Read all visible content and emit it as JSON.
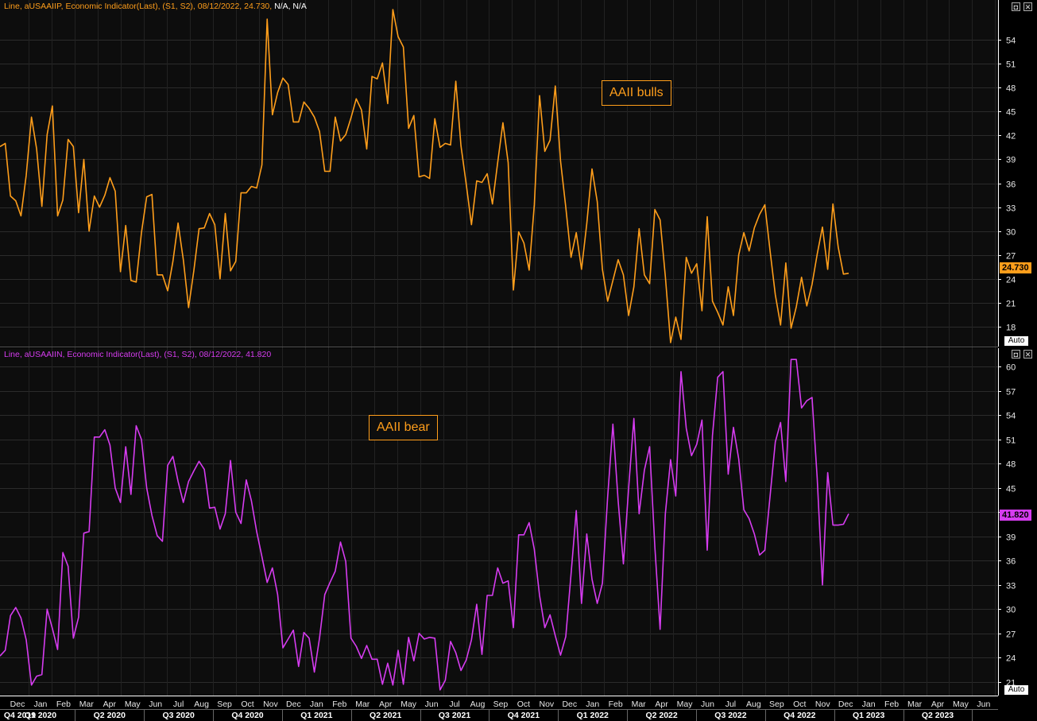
{
  "panels": [
    {
      "header_main": "Line, aUSAAIIP, Economic Indicator(Last), (S1, S2), 08/12/2022, 24.730,",
      "header_rest": " N/A, N/A",
      "color": "#ff9e1b",
      "last_label": "24.730",
      "annotation": "AAII bulls"
    },
    {
      "header_main": "Line, aUSAAIIN, Economic Indicator(Last), (S1, S2), 08/12/2022, 41.820",
      "header_rest": "",
      "color": "#d63cf0",
      "last_label": "41.820",
      "annotation": "AAII bear"
    }
  ],
  "controls": {
    "auto": "Auto",
    "restore": "◘",
    "close": "✕"
  },
  "chart_data": [
    {
      "type": "line",
      "name": "AAII bulls",
      "ylim": [
        15.5,
        59
      ],
      "y_ticks": [
        18,
        21,
        24,
        27,
        30,
        33,
        36,
        39,
        42,
        45,
        48,
        51,
        54
      ],
      "y": [
        40.6,
        41.0,
        34.4,
        33.8,
        31.9,
        37.0,
        44.3,
        40.3,
        33.1,
        42.1,
        45.7,
        31.9,
        33.9,
        41.5,
        40.6,
        32.3,
        39.0,
        30.0,
        34.4,
        33.0,
        34.5,
        36.7,
        35.0,
        24.9,
        30.7,
        23.8,
        23.6,
        29.8,
        34.3,
        34.6,
        24.5,
        24.5,
        22.5,
        26.2,
        31.0,
        26.4,
        20.4,
        25.0,
        30.3,
        30.4,
        32.2,
        30.8,
        24.0,
        32.2,
        25.0,
        26.2,
        34.8,
        34.8,
        35.6,
        35.4,
        38.3,
        56.6,
        44.6,
        47.4,
        49.2,
        48.4,
        43.7,
        43.7,
        46.2,
        45.4,
        44.3,
        42.5,
        37.5,
        37.5,
        44.3,
        41.3,
        42.1,
        44.2,
        46.6,
        45.2,
        40.3,
        49.4,
        49.1,
        51.1,
        46.0,
        57.8,
        54.4,
        53.1,
        42.9,
        44.5,
        36.8,
        37.0,
        36.6,
        44.1,
        40.5,
        41.0,
        40.8,
        48.8,
        40.7,
        35.9,
        30.8,
        36.3,
        36.1,
        37.2,
        33.4,
        38.6,
        43.6,
        38.6,
        22.6,
        29.9,
        28.5,
        25.1,
        33.3,
        47.0,
        40.0,
        41.4,
        48.2,
        38.8,
        33.0,
        26.7,
        29.8,
        25.2,
        30.9,
        37.8,
        33.7,
        25.2,
        21.2,
        23.8,
        26.4,
        24.5,
        19.4,
        23.0,
        30.3,
        24.5,
        23.4,
        32.7,
        31.4,
        24.3,
        16.0,
        19.2,
        16.4,
        26.7,
        24.7,
        25.9,
        20.0,
        31.8,
        21.2,
        19.8,
        18.2,
        23.0,
        19.4,
        27.0,
        29.8,
        27.5,
        30.4,
        32.1,
        33.3,
        27.5,
        22.0,
        18.2,
        26.0,
        17.8,
        20.5,
        24.2,
        20.6,
        23.3,
        27.1,
        30.5,
        25.2,
        33.4,
        28.0,
        24.6,
        24.7
      ]
    },
    {
      "type": "line",
      "name": "AAII bear",
      "ylim": [
        19.3,
        62.3
      ],
      "y_ticks": [
        21,
        24,
        27,
        30,
        33,
        36,
        39,
        42,
        45,
        48,
        51,
        54,
        57,
        60
      ],
      "y": [
        24.2,
        24.9,
        29.2,
        30.2,
        28.9,
        26.2,
        20.6,
        21.7,
        21.9,
        30.0,
        27.6,
        25.0,
        37.0,
        35.3,
        26.4,
        29.0,
        39.4,
        39.6,
        51.3,
        51.3,
        52.2,
        50.3,
        45.0,
        43.2,
        50.1,
        44.2,
        52.7,
        51.0,
        45.0,
        41.6,
        39.1,
        38.4,
        47.8,
        48.9,
        45.8,
        43.2,
        45.8,
        47.1,
        48.3,
        47.3,
        42.5,
        42.6,
        39.9,
        41.8,
        48.4,
        42.0,
        40.6,
        46.0,
        43.4,
        39.6,
        36.5,
        33.3,
        35.1,
        31.8,
        25.2,
        26.3,
        27.4,
        22.9,
        27.1,
        26.4,
        22.2,
        26.4,
        31.8,
        33.3,
        34.7,
        38.3,
        35.9,
        26.4,
        25.4,
        23.9,
        25.5,
        23.8,
        23.8,
        20.7,
        23.3,
        20.6,
        24.9,
        20.7,
        26.5,
        23.6,
        27.0,
        26.3,
        26.5,
        26.4,
        20.0,
        21.2,
        26.0,
        24.6,
        22.4,
        23.7,
        26.2,
        30.6,
        24.4,
        31.7,
        31.7,
        35.1,
        33.2,
        33.5,
        27.7,
        39.2,
        39.2,
        40.7,
        37.4,
        31.7,
        27.7,
        29.3,
        26.7,
        24.3,
        26.6,
        34.3,
        42.2,
        30.7,
        39.3,
        33.7,
        30.7,
        33.2,
        43.9,
        52.9,
        43.4,
        35.6,
        45.0,
        53.6,
        41.8,
        47.2,
        50.1,
        37.7,
        27.5,
        41.8,
        48.5,
        44.0,
        59.4,
        52.4,
        49.0,
        50.4,
        53.4,
        37.3,
        51.5,
        58.7,
        59.4,
        46.7,
        52.5,
        48.6,
        42.3,
        41.2,
        39.3,
        36.7,
        37.3,
        44.0,
        50.7,
        53.1,
        45.8,
        60.9,
        60.9,
        54.9,
        55.8,
        56.2,
        46.2,
        33.0,
        46.9,
        40.4,
        40.4,
        40.5,
        41.8
      ]
    }
  ],
  "x_axis": {
    "month_labels": [
      "Dec",
      "Jan",
      "Feb",
      "Mar",
      "Apr",
      "May",
      "Jun",
      "Jul",
      "Aug",
      "Sep",
      "Oct",
      "Nov",
      "Dec",
      "Jan",
      "Feb",
      "Mar",
      "Apr",
      "May",
      "Jun",
      "Jul",
      "Aug",
      "Sep",
      "Oct",
      "Nov",
      "Dec",
      "Jan",
      "Feb",
      "Mar",
      "Apr",
      "May",
      "Jun",
      "Jul",
      "Aug",
      "Sep",
      "Oct",
      "Nov",
      "Dec",
      "Jan",
      "Feb",
      "Mar",
      "Apr",
      "May",
      "Jun"
    ],
    "quarter_labels": [
      "Q4 2019",
      "Q1 2020",
      "Q2 2020",
      "Q3 2020",
      "Q4 2020",
      "Q1 2021",
      "Q2 2021",
      "Q3 2021",
      "Q4 2021",
      "Q1 2022",
      "Q2 2022",
      "Q3 2022",
      "Q4 2022",
      "Q1 2023",
      "Q2 2023"
    ]
  }
}
